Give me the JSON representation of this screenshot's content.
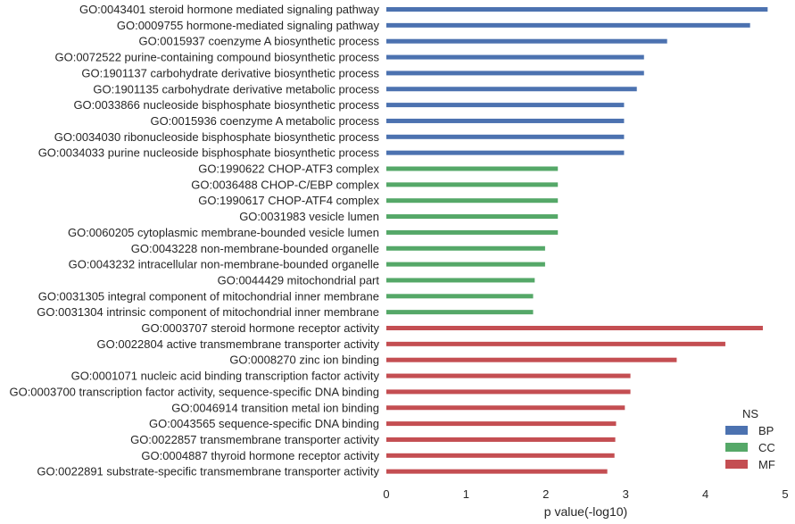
{
  "chart_data": {
    "type": "bar",
    "orientation": "horizontal",
    "xlabel": "p value(-log10)",
    "xlim": [
      0,
      5
    ],
    "xticks": [
      0,
      1,
      2,
      3,
      4,
      5
    ],
    "grid": false,
    "legend": {
      "title": "NS",
      "placement": "lower-right",
      "entries": [
        {
          "name": "BP",
          "color": "#4c72b0"
        },
        {
          "name": "CC",
          "color": "#55a868"
        },
        {
          "name": "MF",
          "color": "#c44e52"
        }
      ]
    },
    "bars": [
      {
        "label": "GO:0043401 steroid hormone mediated signaling pathway",
        "value": 4.78,
        "ns": "BP"
      },
      {
        "label": "GO:0009755 hormone-mediated signaling pathway",
        "value": 4.56,
        "ns": "BP"
      },
      {
        "label": "GO:0015937 coenzyme A biosynthetic process",
        "value": 3.52,
        "ns": "BP"
      },
      {
        "label": "GO:0072522 purine-containing compound biosynthetic process",
        "value": 3.23,
        "ns": "BP"
      },
      {
        "label": "GO:1901137 carbohydrate derivative biosynthetic process",
        "value": 3.23,
        "ns": "BP"
      },
      {
        "label": "GO:1901135 carbohydrate derivative metabolic process",
        "value": 3.14,
        "ns": "BP"
      },
      {
        "label": "GO:0033866 nucleoside bisphosphate biosynthetic process",
        "value": 2.98,
        "ns": "BP"
      },
      {
        "label": "GO:0015936 coenzyme A metabolic process",
        "value": 2.98,
        "ns": "BP"
      },
      {
        "label": "GO:0034030 ribonucleoside bisphosphate biosynthetic process",
        "value": 2.98,
        "ns": "BP"
      },
      {
        "label": "GO:0034033 purine nucleoside bisphosphate biosynthetic process",
        "value": 2.98,
        "ns": "BP"
      },
      {
        "label": "GO:1990622 CHOP-ATF3 complex",
        "value": 2.15,
        "ns": "CC"
      },
      {
        "label": "GO:0036488 CHOP-C/EBP complex",
        "value": 2.15,
        "ns": "CC"
      },
      {
        "label": "GO:1990617 CHOP-ATF4 complex",
        "value": 2.15,
        "ns": "CC"
      },
      {
        "label": "GO:0031983 vesicle lumen",
        "value": 2.15,
        "ns": "CC"
      },
      {
        "label": "GO:0060205 cytoplasmic membrane-bounded vesicle lumen",
        "value": 2.15,
        "ns": "CC"
      },
      {
        "label": "GO:0043228 non-membrane-bounded organelle",
        "value": 1.99,
        "ns": "CC"
      },
      {
        "label": "GO:0043232 intracellular non-membrane-bounded organelle",
        "value": 1.99,
        "ns": "CC"
      },
      {
        "label": "GO:0044429 mitochondrial part",
        "value": 1.86,
        "ns": "CC"
      },
      {
        "label": "GO:0031305 integral component of mitochondrial inner membrane",
        "value": 1.84,
        "ns": "CC"
      },
      {
        "label": "GO:0031304 intrinsic component of mitochondrial inner membrane",
        "value": 1.84,
        "ns": "CC"
      },
      {
        "label": "GO:0003707 steroid hormone receptor activity",
        "value": 4.72,
        "ns": "MF"
      },
      {
        "label": "GO:0022804 active transmembrane transporter activity",
        "value": 4.25,
        "ns": "MF"
      },
      {
        "label": "GO:0008270 zinc ion binding",
        "value": 3.64,
        "ns": "MF"
      },
      {
        "label": "GO:0001071 nucleic acid binding transcription factor activity",
        "value": 3.06,
        "ns": "MF"
      },
      {
        "label": "GO:0003700 transcription factor activity, sequence-specific DNA binding",
        "value": 3.06,
        "ns": "MF"
      },
      {
        "label": "GO:0046914 transition metal ion binding",
        "value": 2.99,
        "ns": "MF"
      },
      {
        "label": "GO:0043565 sequence-specific DNA binding",
        "value": 2.88,
        "ns": "MF"
      },
      {
        "label": "GO:0022857 transmembrane transporter activity",
        "value": 2.87,
        "ns": "MF"
      },
      {
        "label": "GO:0004887 thyroid hormone receptor activity",
        "value": 2.86,
        "ns": "MF"
      },
      {
        "label": "GO:0022891 substrate-specific transmembrane transporter activity",
        "value": 2.77,
        "ns": "MF"
      }
    ]
  }
}
